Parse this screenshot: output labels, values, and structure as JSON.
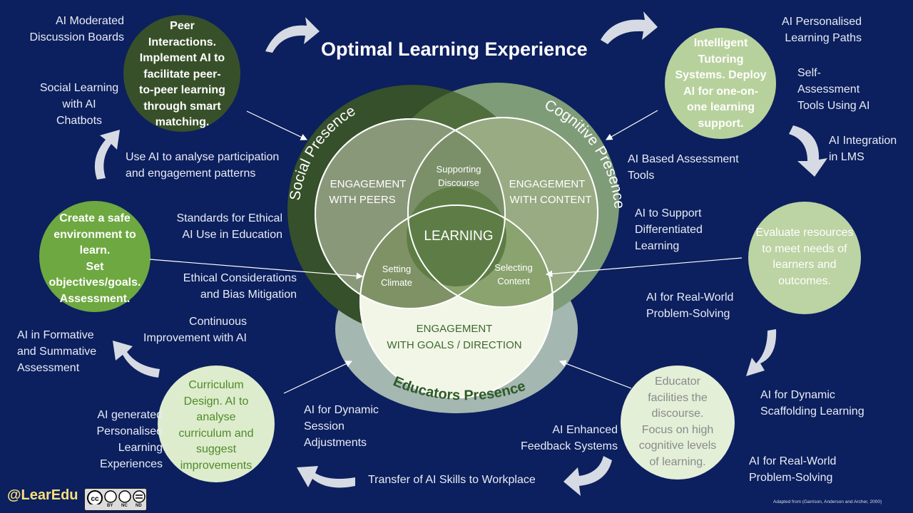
{
  "title": "Optimal Learning Experience",
  "venn": {
    "social_label": "Social Presence",
    "cognitive_label": "Cognitive Presence",
    "educators_label": "Educators Presence",
    "peers": [
      "ENGAGEMENT",
      "WITH PEERS"
    ],
    "content": [
      "ENGAGEMENT",
      "WITH CONTENT"
    ],
    "discourse": [
      "Supporting",
      "Discourse"
    ],
    "learning": "LEARNING",
    "climate": [
      "Setting",
      "Climate"
    ],
    "selecting": [
      "Selecting",
      "Content"
    ],
    "goals": [
      "ENGAGEMENT",
      "WITH GOALS / DIRECTION"
    ]
  },
  "circles": {
    "peer": [
      "Peer",
      "Interactions.",
      "Implement AI to",
      "facilitate peer-",
      "to-peer learning",
      "through smart",
      "matching."
    ],
    "tutoring": [
      "Intelligent",
      "Tutoring",
      "Systems. Deploy",
      "AI for one-on-",
      "one learning",
      "support."
    ],
    "safe": [
      "Create a safe",
      "environment to",
      "learn.",
      "Set",
      "objectives/goals.",
      "Assessment."
    ],
    "evaluate": [
      "Evaluate resources",
      "to meet needs of",
      "learners and",
      "outcomes."
    ],
    "curriculum": [
      "Curriculum",
      "Design. AI to",
      "analyse",
      "curriculum and",
      "suggest",
      "improvements"
    ],
    "educator": [
      "Educator",
      "facilities the",
      "discourse.",
      "Focus on high",
      "cognitive levels",
      "of learning."
    ]
  },
  "labels": {
    "moderated": [
      "AI Moderated",
      "Discussion Boards"
    ],
    "social_learning": [
      "Social Learning",
      "with AI",
      "Chatbots"
    ],
    "participation": [
      "Use AI to analyse participation",
      "and engagement patterns"
    ],
    "ethical_standards": [
      "Standards for Ethical",
      "AI Use  in Education"
    ],
    "ethical_considerations": [
      "Ethical Considerations",
      "and Bias Mitigation"
    ],
    "continuous": [
      "Continuous",
      "Improvement with AI"
    ],
    "formative": [
      "AI in Formative",
      "and Summative",
      "Assessment"
    ],
    "generated": [
      "AI generated",
      "Personalised",
      "Learning",
      "Experiences"
    ],
    "dynamic_session": [
      "AI for Dynamic",
      "Session",
      "Adjustments"
    ],
    "transfer": "Transfer of AI Skills to Workplace",
    "feedback": [
      "AI Enhanced",
      "Feedback Systems"
    ],
    "scaffolding": [
      "AI for Dynamic",
      "Scaffolding Learning"
    ],
    "realworld_bottom": [
      "AI for Real-World",
      "Problem-Solving"
    ],
    "realworld_mid": [
      "AI for Real-World",
      "Problem-Solving"
    ],
    "differentiated": [
      "AI to Support",
      "Differentiated",
      "Learning"
    ],
    "assessment_tools": [
      "AI Based Assessment",
      "Tools"
    ],
    "personalised_paths": [
      "AI Personalised",
      "Learning Paths"
    ],
    "self_assessment": [
      "Self-",
      "Assessment",
      "Tools Using AI"
    ],
    "lms": [
      "AI Integration",
      "in LMS"
    ]
  },
  "handle": "@LearEdu",
  "license": [
    "BY",
    "NC",
    "ND"
  ],
  "credit": "Adapted from (Garrison, Anderson and Archer, 2000)"
}
